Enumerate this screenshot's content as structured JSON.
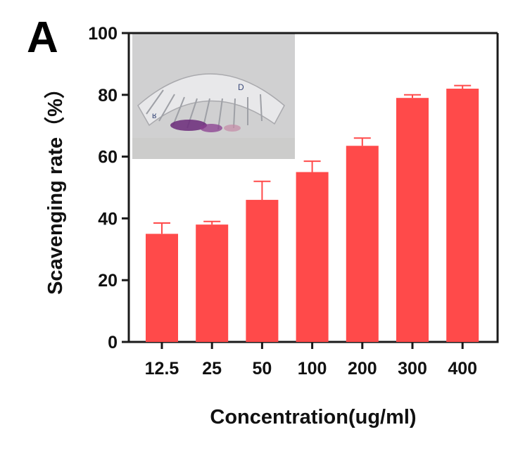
{
  "panel_label": "A",
  "colors": {
    "bar": "#ff4a4a",
    "axis": "#1a1a1a"
  },
  "chart_data": {
    "type": "bar",
    "categories": [
      "12.5",
      "25",
      "50",
      "100",
      "200",
      "300",
      "400"
    ],
    "values": [
      35,
      38,
      46,
      55,
      63.5,
      79,
      82
    ],
    "errors": [
      3.5,
      1,
      6,
      3.5,
      2.5,
      1,
      1
    ],
    "xlabel": "Concentration(ug/ml)",
    "ylabel": "Scavenging rate（%）",
    "ylim": [
      0,
      100
    ],
    "yticks": [
      0,
      20,
      40,
      60,
      80,
      100
    ],
    "grid": false,
    "inset": "photo-of-sample-tubes-top-left"
  }
}
